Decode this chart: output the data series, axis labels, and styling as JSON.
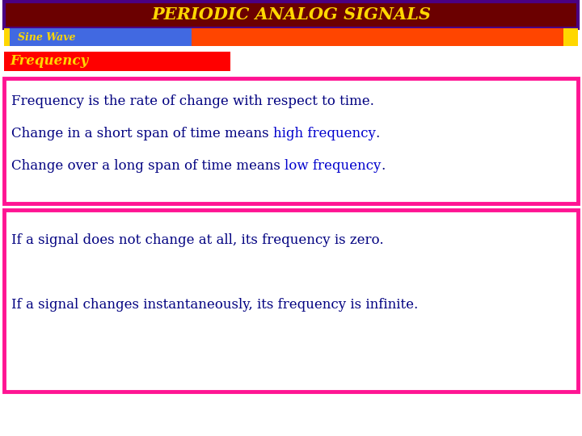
{
  "title": "PERIODIC ANALOG SIGNALS",
  "title_bg": "#6B0000",
  "title_border": "#4B0082",
  "title_color": "#FFD700",
  "subtitle_label": "Sine Wave",
  "subtitle_bg": "#4169E1",
  "subtitle_bar_color": "#FF4500",
  "subtitle_accent": "#FFD700",
  "section_label": "Frequency",
  "section_bg": "#FF0000",
  "section_text_color": "#FFD700",
  "box1_line1": "Frequency is the rate of change with respect to time.",
  "box1_line2_a": "Change in a short span of time means ",
  "box1_line2_b": "high frequency",
  "box1_line2_c": ".",
  "box1_line3_a": "Change over a long span of time means ",
  "box1_line3_b": "low frequency",
  "box1_line3_c": ".",
  "box1_border": "#FF1493",
  "box1_bg": "#FFFFFF",
  "box2_line1": "If a signal does not change at all, its frequency is zero.",
  "box2_line2": "If a signal changes instantaneously, its frequency is infinite.",
  "box2_border": "#FF1493",
  "box2_bg": "#FFFFFF",
  "text_color_main": "#000080",
  "highlight_color": "#0000CD",
  "bg_color": "#FFFFFF",
  "title_fontsize": 15,
  "body_fontsize": 12,
  "section_fontsize": 12
}
